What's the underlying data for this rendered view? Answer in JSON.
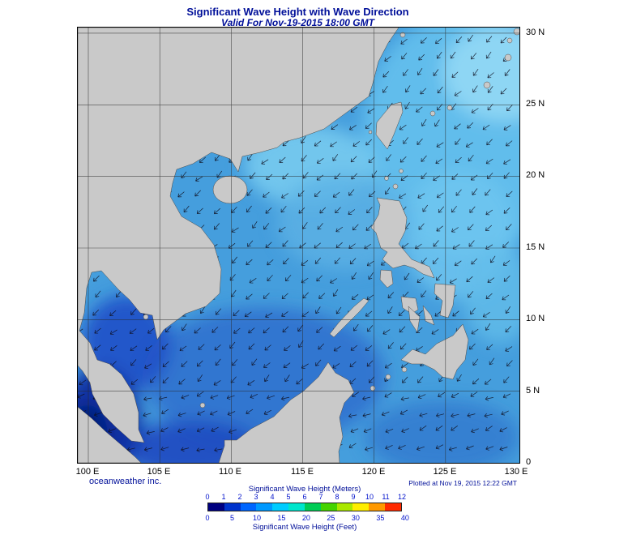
{
  "header": {
    "title": "Significant Wave Height with Wave Direction",
    "subtitle": "Valid For Nov-19-2015 18:00 GMT"
  },
  "map": {
    "lat_labels": [
      "30 N",
      "25 N",
      "20 N",
      "15 N",
      "10 N",
      "5 N",
      "0"
    ],
    "lon_labels": [
      "100 E",
      "105 E",
      "110 E",
      "115 E",
      "120 E",
      "125 E",
      "130 E"
    ],
    "lat_range": "0 to 30 N",
    "lon_range": "100 E to 130 E",
    "grid_interval_deg": 5,
    "dominant_wave_direction": "southwest"
  },
  "footer": {
    "credit": "oceanweather inc.",
    "plotted": "Plotted at Nov 19, 2015 12:22 GMT"
  },
  "legend": {
    "meters_title": "Significant Wave Height (Meters)",
    "meters_ticks": [
      0,
      1,
      2,
      3,
      4,
      5,
      6,
      7,
      8,
      9,
      10,
      11,
      12
    ],
    "feet_title": "Significant Wave Height (Feet)",
    "feet_ticks": [
      0,
      5,
      10,
      15,
      20,
      25,
      30,
      35,
      40
    ],
    "colors": [
      "#000080",
      "#0033cc",
      "#0066ff",
      "#0099ff",
      "#00ccff",
      "#00e6cc",
      "#00cc55",
      "#44d400",
      "#aae800",
      "#ffee00",
      "#ff9900",
      "#ff2a00"
    ]
  },
  "colors": {
    "title_text": "#000f99",
    "sea_base": "#459edd",
    "land": "#c9c9c9",
    "tick_text": "#0011cc"
  }
}
